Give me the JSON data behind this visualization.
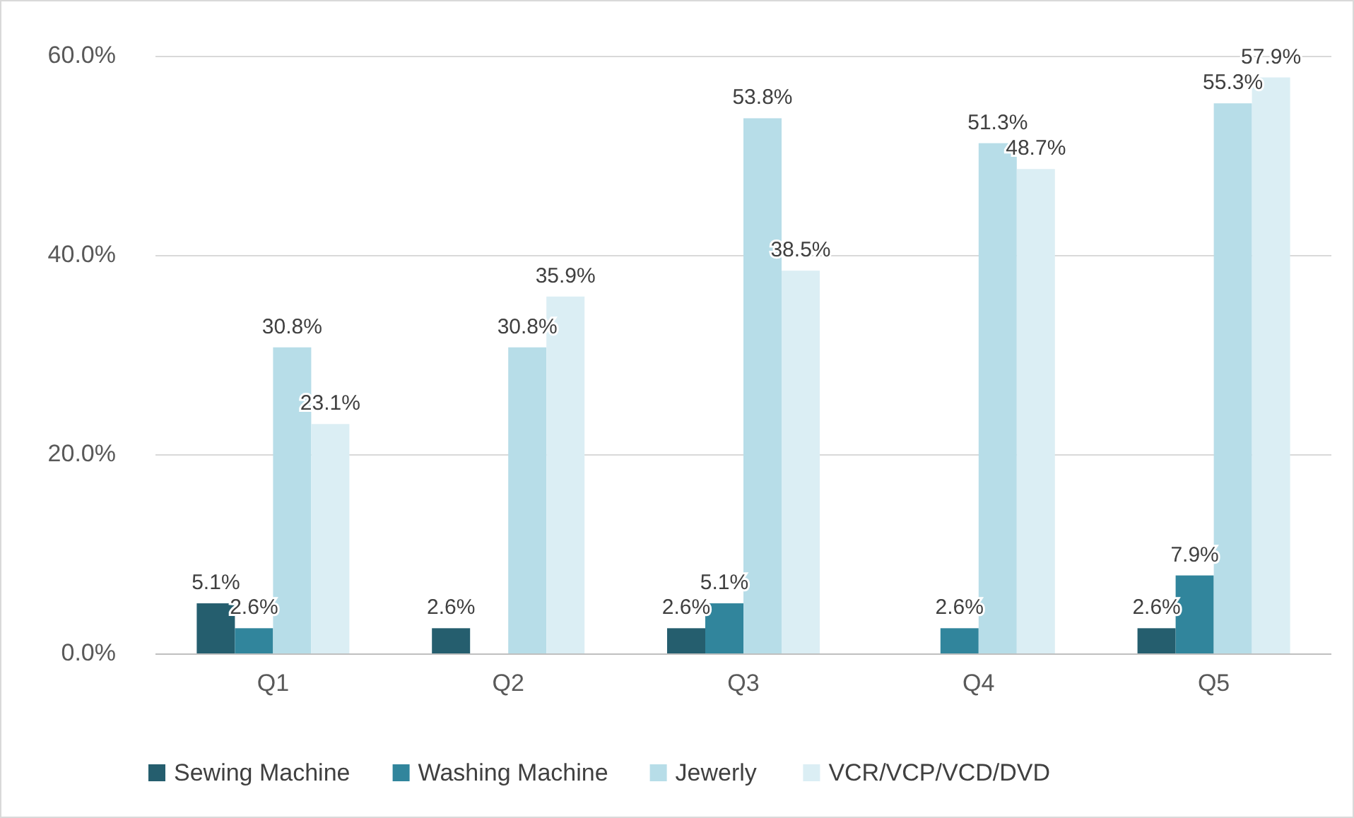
{
  "chart_data": {
    "type": "bar",
    "categories": [
      "Q1",
      "Q2",
      "Q3",
      "Q4",
      "Q5"
    ],
    "series": [
      {
        "name": "Sewing Machine",
        "color": "#255e6e",
        "values": [
          5.1,
          2.6,
          2.6,
          null,
          2.6
        ],
        "value_labels": [
          "5.1%",
          "2.6%",
          "2.6%",
          null,
          "2.6%"
        ]
      },
      {
        "name": "Washing Machine",
        "color": "#31859c",
        "values": [
          2.6,
          null,
          5.1,
          2.6,
          7.9
        ],
        "value_labels": [
          "2.6%",
          null,
          "5.1%",
          "2.6%",
          "7.9%"
        ]
      },
      {
        "name": "Jewerly",
        "color": "#b7dde8",
        "values": [
          30.8,
          30.8,
          53.8,
          51.3,
          55.3
        ],
        "value_labels": [
          "30.8%",
          "30.8%",
          "53.8%",
          "51.3%",
          "55.3%"
        ]
      },
      {
        "name": "VCR/VCP/VCD/DVD",
        "color": "#dbeef4",
        "values": [
          23.1,
          35.9,
          38.5,
          48.7,
          57.9
        ],
        "value_labels": [
          "23.1%",
          "35.9%",
          "38.5%",
          "48.7%",
          "57.9%"
        ]
      }
    ],
    "ylim": [
      0,
      60
    ],
    "yticks": [
      {
        "value": 0,
        "label": "0.0%"
      },
      {
        "value": 20,
        "label": "20.0%"
      },
      {
        "value": 40,
        "label": "40.0%"
      },
      {
        "value": 60,
        "label": "60.0%"
      }
    ],
    "grid": "y",
    "legend": "bottom"
  }
}
